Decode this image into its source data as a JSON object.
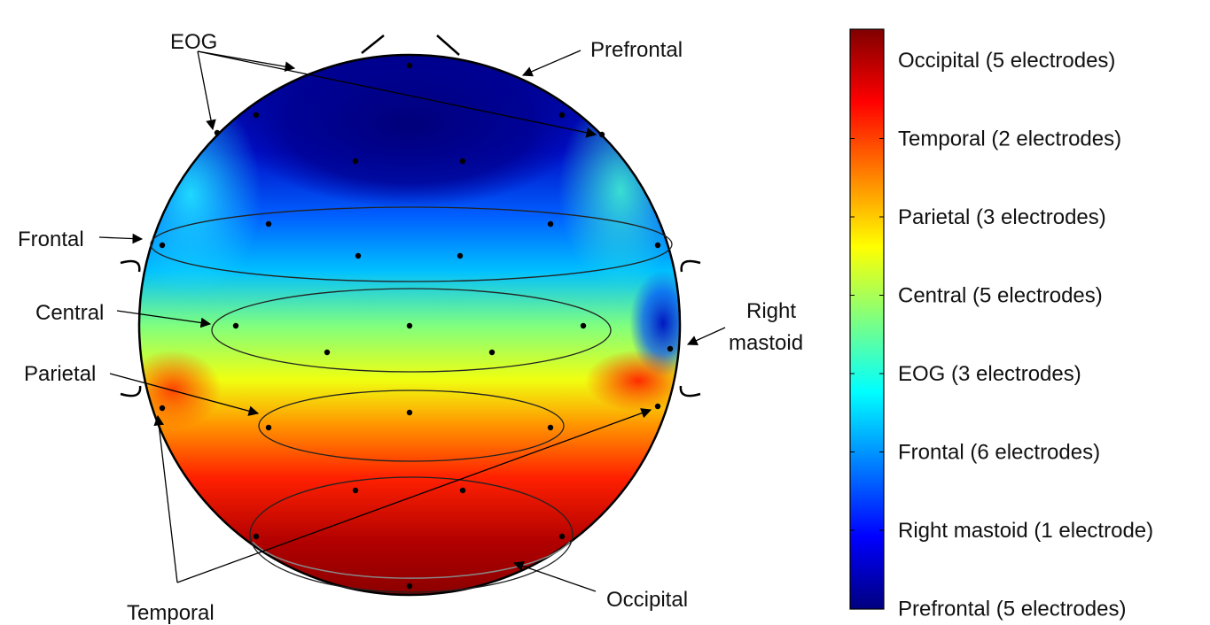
{
  "annotations": {
    "eog": "EOG",
    "prefrontal": "Prefrontal",
    "frontal": "Frontal",
    "central": "Central",
    "parietal": "Parietal",
    "temporal": "Temporal",
    "occipital": "Occipital",
    "right_mastoid_line1": "Right",
    "right_mastoid_line2": "mastoid"
  },
  "colorbar": {
    "labels": [
      "Occipital (5 electrodes)",
      "Temporal (2 electrodes)",
      "Parietal (3 electrodes)",
      "Central (5 electrodes)",
      "EOG (3 electrodes)",
      "Frontal (6 electrodes)",
      "Right mastoid (1 electrode)",
      "Prefrontal (5 electrodes)"
    ],
    "colormap": "jet",
    "colors": {
      "top": "#800000",
      "red": "#ff0000",
      "yellow": "#ffff00",
      "cyan": "#00ffff",
      "blue": "#0000ff",
      "bottom": "#00007f"
    }
  }
}
